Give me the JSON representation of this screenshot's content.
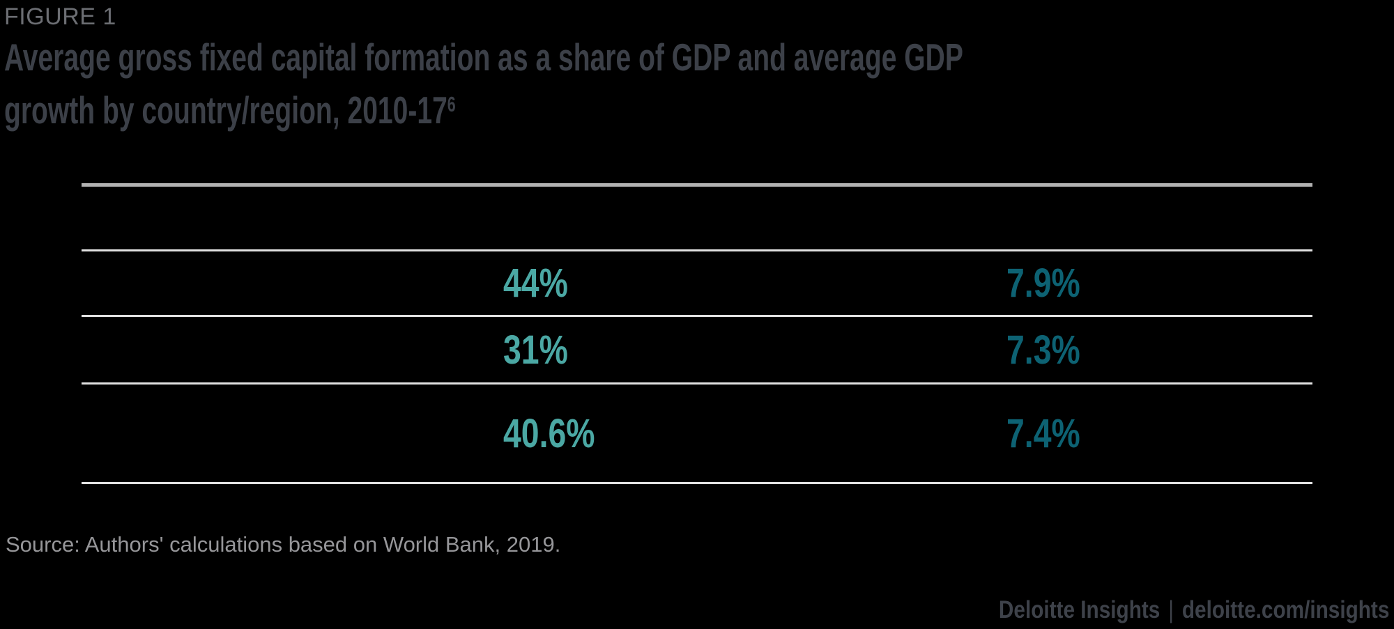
{
  "figure": {
    "label": "FIGURE 1",
    "title_line1": "Average gross fixed capital formation as a share of GDP and average GDP",
    "title_line2": "growth by country/region, 2010-17",
    "title_footnote_marker": "6"
  },
  "table": {
    "rows": [
      {
        "label": "",
        "capital_formation_share": "44%",
        "gdp_growth": "7.9%"
      },
      {
        "label": "",
        "capital_formation_share": "31%",
        "gdp_growth": "7.3%"
      },
      {
        "label": "",
        "capital_formation_share": "40.6%",
        "gdp_growth": "7.4%"
      }
    ]
  },
  "source_note": "Source: Authors' calculations based on World Bank, 2019.",
  "footer": {
    "brand": "Deloitte Insights",
    "separator": "|",
    "url": "deloitte.com/insights"
  },
  "colors": {
    "background": "#000000",
    "figure_label": "#6C6E73",
    "title": "#3C4048",
    "value_light_teal": "#4BA8A4",
    "value_dark_teal": "#0D6273",
    "source_text": "#969699",
    "footer_text": "#3E424A",
    "table_top_border": "#B2B2B2",
    "table_row_border": "#E2E2E2"
  },
  "chart_data": {
    "type": "table",
    "title": "Average gross fixed capital formation as a share of GDP and average GDP growth by country/region, 2010-17",
    "column_headers_visible": false,
    "row_labels_visible": false,
    "rows": [
      {
        "capital_formation_share_pct": 44,
        "gdp_growth_pct": 7.9
      },
      {
        "capital_formation_share_pct": 31,
        "gdp_growth_pct": 7.3
      },
      {
        "capital_formation_share_pct": 40.6,
        "gdp_growth_pct": 7.4
      }
    ],
    "source": "Source: Authors' calculations based on World Bank, 2019."
  }
}
